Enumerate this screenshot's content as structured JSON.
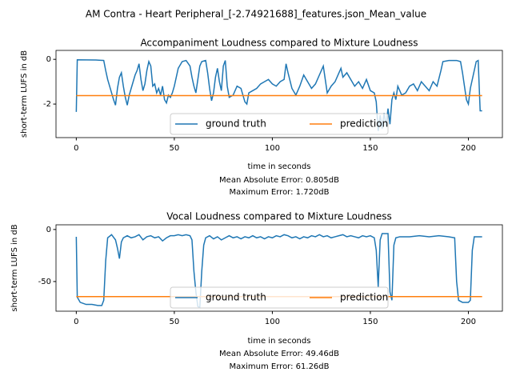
{
  "title": "AM Contra - Heart Peripheral_[-2.74921688]_features.json_Mean_value",
  "chart_data": [
    {
      "type": "line",
      "title": "Accompaniment Loudness compared to Mixture Loudness",
      "xlabel": "time in seconds",
      "ylabel": "short-term LUFS in dB",
      "annotations": [
        "Mean Absolute Error: 0.805dB",
        "Maximum Error: 1.720dB"
      ],
      "xlim": [
        -10.35,
        217.35
      ],
      "xticks": [
        0,
        50,
        100,
        150,
        200
      ],
      "ylim": [
        -3.5,
        0.4
      ],
      "yticks": [
        -2,
        0
      ],
      "grid": false,
      "legend": "lower center",
      "series": [
        {
          "name": "ground truth",
          "color": "#1f77b4",
          "x": [
            0,
            0.5,
            10,
            14,
            15,
            16,
            17,
            18,
            19,
            20,
            21,
            22,
            23,
            24,
            25,
            26,
            27,
            28,
            29,
            30,
            31,
            32,
            33,
            34,
            35,
            36,
            37,
            38,
            39,
            40,
            41,
            42,
            43,
            44,
            45,
            46,
            47,
            48,
            49,
            50,
            52,
            54,
            56,
            58,
            59,
            60,
            61,
            62,
            63,
            64,
            66,
            67,
            68,
            69,
            70,
            71,
            72,
            73,
            74,
            75,
            76,
            77,
            78,
            80,
            82,
            84,
            86,
            87,
            88,
            90,
            92,
            94,
            96,
            98,
            100,
            102,
            104,
            106,
            107,
            108,
            110,
            112,
            114,
            116,
            118,
            120,
            122,
            124,
            126,
            127,
            128,
            130,
            132,
            134,
            135,
            136,
            138,
            140,
            142,
            144,
            146,
            148,
            150,
            152,
            153,
            154,
            155,
            156,
            157,
            158,
            159,
            160,
            161,
            162,
            163,
            164,
            166,
            168,
            170,
            172,
            174,
            176,
            178,
            180,
            182,
            184,
            186,
            187,
            190,
            194,
            196,
            197,
            198,
            199,
            200,
            201,
            203,
            204,
            205,
            206,
            207
          ],
          "values": [
            -2.35,
            -0.02,
            -0.03,
            -0.05,
            -0.5,
            -0.9,
            -1.2,
            -1.5,
            -1.8,
            -2.05,
            -1.3,
            -0.8,
            -0.6,
            -1.2,
            -1.7,
            -2.05,
            -1.6,
            -1.3,
            -1.0,
            -0.7,
            -0.5,
            -0.2,
            -0.9,
            -1.4,
            -1.1,
            -0.5,
            -0.1,
            -0.3,
            -1.2,
            -1.1,
            -1.5,
            -1.3,
            -1.6,
            -1.2,
            -1.8,
            -1.95,
            -1.6,
            -1.7,
            -1.5,
            -1.2,
            -0.4,
            -0.1,
            -0.05,
            -0.3,
            -0.8,
            -1.2,
            -1.5,
            -0.9,
            -0.3,
            -0.1,
            -0.05,
            -0.6,
            -1.3,
            -1.85,
            -1.5,
            -0.8,
            -0.4,
            -1.0,
            -1.4,
            -0.3,
            -0.05,
            -1.2,
            -1.7,
            -1.6,
            -1.2,
            -1.3,
            -1.9,
            -2.0,
            -1.5,
            -1.4,
            -1.3,
            -1.1,
            -1.0,
            -0.9,
            -1.1,
            -1.2,
            -1.0,
            -0.9,
            -0.2,
            -0.6,
            -1.3,
            -1.6,
            -1.2,
            -0.7,
            -1.0,
            -1.3,
            -1.1,
            -0.7,
            -0.3,
            -0.9,
            -1.5,
            -1.2,
            -1.0,
            -0.6,
            -0.4,
            -0.8,
            -0.6,
            -0.9,
            -1.2,
            -1.0,
            -1.3,
            -0.9,
            -1.4,
            -1.5,
            -1.9,
            -3.2,
            -2.5,
            -3.1,
            -2.4,
            -3.0,
            -2.2,
            -2.9,
            -1.8,
            -1.5,
            -1.8,
            -1.2,
            -1.6,
            -1.5,
            -1.2,
            -1.1,
            -1.4,
            -1.0,
            -1.2,
            -1.4,
            -1.0,
            -1.2,
            -0.5,
            -0.1,
            -0.05,
            -0.05,
            -0.1,
            -0.6,
            -1.2,
            -1.8,
            -2.0,
            -1.3,
            -0.5,
            -0.1,
            -0.05,
            -2.3,
            -2.3
          ]
        },
        {
          "name": "prediction",
          "color": "#ff7f0e",
          "x": [
            0,
            207
          ],
          "values": [
            -1.62,
            -1.62
          ]
        }
      ]
    },
    {
      "type": "line",
      "title": "Vocal Loudness compared to Mixture Loudness",
      "xlabel": "time in seconds",
      "ylabel": "short-term LUFS in dB",
      "annotations": [
        "Mean Absolute Error: 49.46dB",
        "Maximum Error: 61.26dB"
      ],
      "xlim": [
        -10.35,
        217.35
      ],
      "xticks": [
        0,
        50,
        100,
        150,
        200
      ],
      "ylim": [
        -78.5,
        4.5
      ],
      "yticks": [
        -50,
        0
      ],
      "grid": false,
      "legend": "lower center",
      "series": [
        {
          "name": "ground truth",
          "color": "#1f77b4",
          "x": [
            0,
            0.5,
            2,
            5,
            8,
            11,
            13,
            14,
            15,
            16,
            18,
            20,
            21,
            22,
            23,
            24,
            26,
            28,
            30,
            32,
            34,
            36,
            38,
            40,
            42,
            44,
            46,
            48,
            50,
            52,
            54,
            56,
            58,
            59,
            60,
            61,
            62,
            63,
            64,
            65,
            66,
            68,
            70,
            72,
            74,
            76,
            78,
            80,
            82,
            84,
            86,
            88,
            90,
            92,
            94,
            96,
            98,
            100,
            102,
            104,
            106,
            108,
            110,
            112,
            114,
            116,
            118,
            120,
            122,
            124,
            126,
            128,
            130,
            132,
            134,
            136,
            138,
            140,
            142,
            144,
            146,
            148,
            150,
            152,
            153,
            154,
            155,
            156,
            158,
            159,
            160,
            161,
            162,
            163,
            165,
            170,
            175,
            180,
            185,
            190,
            193,
            194,
            195,
            197,
            200,
            201,
            202,
            203,
            207
          ],
          "values": [
            -7,
            -65,
            -70,
            -72,
            -72,
            -73,
            -73,
            -68,
            -30,
            -8,
            -5,
            -10,
            -18,
            -28,
            -12,
            -8,
            -6,
            -8,
            -7,
            -5,
            -10,
            -7,
            -6,
            -8,
            -7,
            -11,
            -8,
            -6,
            -6,
            -5,
            -6,
            -5,
            -6,
            -10,
            -40,
            -60,
            -74,
            -75,
            -40,
            -15,
            -8,
            -6,
            -9,
            -7,
            -10,
            -8,
            -6,
            -8,
            -7,
            -9,
            -7,
            -8,
            -6,
            -8,
            -7,
            -9,
            -7,
            -8,
            -6,
            -7,
            -5,
            -6,
            -8,
            -7,
            -9,
            -7,
            -8,
            -6,
            -7,
            -5,
            -7,
            -6,
            -8,
            -7,
            -6,
            -5,
            -7,
            -6,
            -7,
            -8,
            -6,
            -7,
            -6,
            -8,
            -20,
            -55,
            -10,
            -4,
            -4,
            -4,
            -60,
            -68,
            -15,
            -8,
            -7,
            -7,
            -6,
            -7,
            -6,
            -7,
            -8,
            -50,
            -68,
            -70,
            -70,
            -68,
            -20,
            -7,
            -7
          ]
        },
        {
          "name": "prediction",
          "color": "#ff7f0e",
          "x": [
            0,
            207
          ],
          "values": [
            -64.5,
            -64.5
          ]
        }
      ]
    }
  ]
}
